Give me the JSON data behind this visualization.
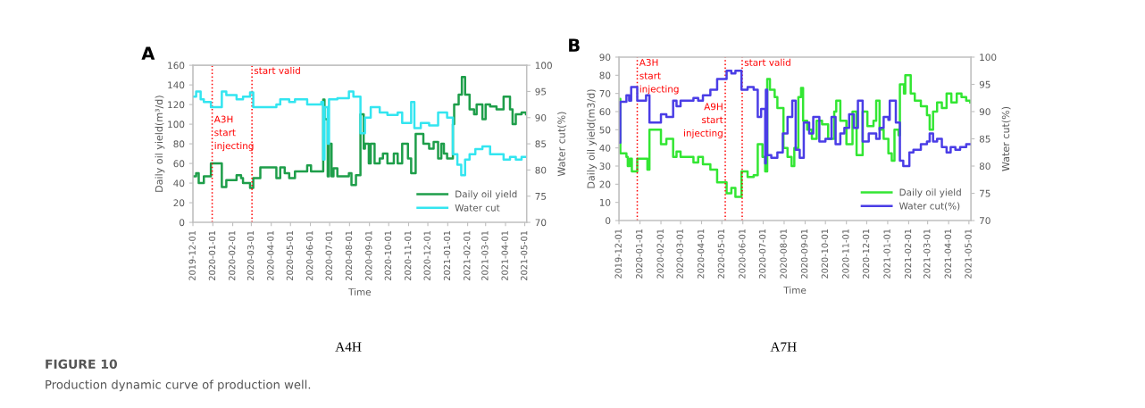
{
  "chart_data": [
    {
      "type": "step",
      "title": "A",
      "subtitle": "A4H",
      "xlabel": "Time",
      "ylabel": "Daily oil yield(m³/d)",
      "y2label": "Water cut(%)",
      "xlim": [
        "2019-12-01",
        "2021-05-04"
      ],
      "xticks": [
        "2019-12-01",
        "2020-01-01",
        "2020-02-01",
        "2020-03-01",
        "2020-04-01",
        "2020-05-01",
        "2020-06-01",
        "2020-07-01",
        "2020-08-01",
        "2020-09-01",
        "2020-10-01",
        "2020-11-01",
        "2020-12-01",
        "2021-01-01",
        "2021-02-01",
        "2021-03-01",
        "2021-04-01",
        "2021-05-01"
      ],
      "ylim": [
        0,
        160
      ],
      "yticks": [
        0,
        20,
        40,
        60,
        80,
        100,
        120,
        140,
        160
      ],
      "y2lim": [
        70,
        100
      ],
      "y2ticks": [
        70,
        75,
        80,
        85,
        90,
        95,
        100
      ],
      "grid": false,
      "legend": "bottom right",
      "ref_lines": [
        {
          "axis": "x",
          "value": "2019-12-31",
          "label": "A3H\nstart\ninjecting",
          "color": "#ff0000",
          "line_style": "dotted"
        },
        {
          "axis": "x",
          "value": "2020-03-02",
          "label": "start valid",
          "color": "#ff0000",
          "line_style": "dotted"
        }
      ],
      "series": [
        {
          "name": "Daily oil yield",
          "color": "#1e9e4a",
          "x": [
            "2019-12-01",
            "2019-12-06",
            "2019-12-10",
            "2019-12-18",
            "2019-12-29",
            "2020-01-15",
            "2020-01-22",
            "2020-02-07",
            "2020-02-14",
            "2020-02-17",
            "2020-02-28",
            "2020-03-04",
            "2020-03-15",
            "2020-04-09",
            "2020-04-15",
            "2020-04-22",
            "2020-04-29",
            "2020-05-08",
            "2020-05-27",
            "2020-06-02",
            "2020-06-21",
            "2020-06-23",
            "2020-06-28",
            "2020-06-30",
            "2020-07-04",
            "2020-07-07",
            "2020-07-13",
            "2020-07-31",
            "2020-08-04",
            "2020-08-11",
            "2020-08-18",
            "2020-08-23",
            "2020-08-25",
            "2020-08-31",
            "2020-09-03",
            "2020-09-09",
            "2020-09-17",
            "2020-09-22",
            "2020-09-29",
            "2020-10-09",
            "2020-10-15",
            "2020-10-22",
            "2020-10-31",
            "2020-11-05",
            "2020-11-12",
            "2020-11-24",
            "2020-12-03",
            "2020-12-10",
            "2020-12-17",
            "2020-12-22",
            "2020-12-26",
            "2020-12-31",
            "2021-01-09",
            "2021-01-11",
            "2021-01-18",
            "2021-01-23",
            "2021-01-28",
            "2021-02-04",
            "2021-02-11",
            "2021-02-15",
            "2021-02-24",
            "2021-03-01",
            "2021-03-08",
            "2021-03-18",
            "2021-03-29",
            "2021-04-08",
            "2021-04-12",
            "2021-04-17",
            "2021-04-26",
            "2021-05-03"
          ],
          "values": [
            47,
            50,
            40,
            47,
            60,
            36,
            43,
            48,
            45,
            40,
            35,
            45,
            56,
            45,
            56,
            50,
            45,
            52,
            58,
            52,
            125,
            105,
            47,
            80,
            47,
            55,
            47,
            50,
            38,
            48,
            110,
            75,
            80,
            60,
            80,
            60,
            65,
            70,
            60,
            70,
            60,
            80,
            65,
            50,
            90,
            80,
            75,
            82,
            65,
            80,
            70,
            65,
            100,
            120,
            130,
            148,
            130,
            115,
            110,
            120,
            105,
            120,
            118,
            115,
            128,
            115,
            100,
            110,
            112,
            110
          ]
        },
        {
          "name": "Water cut",
          "color": "#33e5f0",
          "axis": "y2",
          "x": [
            "2019-12-01",
            "2019-12-06",
            "2019-12-13",
            "2019-12-18",
            "2019-12-29",
            "2020-01-15",
            "2020-01-22",
            "2020-02-07",
            "2020-02-17",
            "2020-02-28",
            "2020-03-04",
            "2020-04-09",
            "2020-04-15",
            "2020-04-29",
            "2020-05-08",
            "2020-05-27",
            "2020-06-18",
            "2020-06-21",
            "2020-06-23",
            "2020-06-28",
            "2020-06-30",
            "2020-07-13",
            "2020-07-31",
            "2020-08-07",
            "2020-08-18",
            "2020-08-25",
            "2020-09-03",
            "2020-09-17",
            "2020-09-29",
            "2020-10-15",
            "2020-10-22",
            "2020-11-05",
            "2020-11-10",
            "2020-11-20",
            "2020-12-03",
            "2020-12-17",
            "2020-12-31",
            "2021-01-09",
            "2021-01-16",
            "2021-01-22",
            "2021-01-28",
            "2021-02-04",
            "2021-02-13",
            "2021-02-24",
            "2021-03-08",
            "2021-03-18",
            "2021-03-29",
            "2021-04-08",
            "2021-04-17",
            "2021-04-26",
            "2021-05-03"
          ],
          "values": [
            94,
            95,
            93.5,
            93,
            92,
            95,
            94.3,
            93.5,
            94,
            94.8,
            92,
            92.5,
            93.5,
            93,
            93.5,
            92.5,
            93,
            82,
            92,
            85,
            93.5,
            93.7,
            95,
            94,
            87,
            90,
            92,
            91,
            90.5,
            91,
            89,
            93,
            88,
            89,
            88.5,
            91,
            90,
            83,
            81,
            79,
            82,
            83,
            84,
            84.5,
            83,
            83,
            82,
            82.5,
            82,
            82.5,
            82.5
          ]
        }
      ],
      "annotations": [
        "FIGURE 10",
        "Production dynamic curve of production well."
      ]
    },
    {
      "type": "step",
      "title": "B",
      "subtitle": "A7H",
      "xlabel": "Time",
      "ylabel": "Daily oil yield(m3/d)",
      "y2label": "Water cut(%)",
      "xlim": [
        "2019-12-01",
        "2021-05-04"
      ],
      "xticks": [
        "2019-12-01",
        "2020-01-01",
        "2020-02-01",
        "2020-03-01",
        "2020-04-01",
        "2020-05-01",
        "2020-06-01",
        "2020-07-01",
        "2020-08-01",
        "2020-09-01",
        "2020-10-01",
        "2020-11-01",
        "2020-12-01",
        "2021-01-01",
        "2021-02-01",
        "2021-03-01",
        "2021-04-01",
        "2021-05-01"
      ],
      "ylim": [
        0,
        90
      ],
      "yticks": [
        0,
        10,
        20,
        30,
        40,
        50,
        60,
        70,
        80,
        90
      ],
      "y2lim": [
        70,
        100
      ],
      "y2ticks": [
        70,
        75,
        80,
        85,
        90,
        95,
        100
      ],
      "grid": false,
      "legend": "bottom right",
      "ref_lines": [
        {
          "axis": "x",
          "value": "2019-12-28",
          "label": "A3H\nstart\ninjecting",
          "color": "#ff0000",
          "line_style": "dotted"
        },
        {
          "axis": "x",
          "value": "2020-05-06",
          "label": "A9H\nstart\ninjecting",
          "color": "#ff0000",
          "line_style": "dotted"
        },
        {
          "axis": "x",
          "value": "2020-05-31",
          "label": "start valid",
          "color": "#ff0000",
          "line_style": "dotted"
        }
      ],
      "series": [
        {
          "name": "Daily oil yield",
          "color": "#33e633",
          "x": [
            "2019-12-01",
            "2019-12-03",
            "2019-12-12",
            "2019-12-14",
            "2019-12-17",
            "2019-12-20",
            "2019-12-28",
            "2020-01-12",
            "2020-01-15",
            "2020-02-01",
            "2020-02-09",
            "2020-02-19",
            "2020-02-24",
            "2020-03-01",
            "2020-03-20",
            "2020-03-27",
            "2020-04-03",
            "2020-04-14",
            "2020-04-24",
            "2020-05-08",
            "2020-05-15",
            "2020-05-21",
            "2020-05-30",
            "2020-06-08",
            "2020-06-17",
            "2020-06-23",
            "2020-06-30",
            "2020-07-04",
            "2020-07-07",
            "2020-07-11",
            "2020-07-18",
            "2020-07-22",
            "2020-07-31",
            "2020-08-06",
            "2020-08-12",
            "2020-08-16",
            "2020-08-22",
            "2020-08-26",
            "2020-08-29",
            "2020-09-04",
            "2020-09-11",
            "2020-09-18",
            "2020-09-26",
            "2020-10-05",
            "2020-10-14",
            "2020-10-17",
            "2020-10-23",
            "2020-11-01",
            "2020-11-10",
            "2020-11-16",
            "2020-11-25",
            "2020-12-02",
            "2020-12-11",
            "2020-12-15",
            "2020-12-20",
            "2020-12-26",
            "2021-01-02",
            "2021-01-07",
            "2021-01-11",
            "2021-01-17",
            "2021-01-19",
            "2021-01-25",
            "2021-01-27",
            "2021-02-04",
            "2021-02-10",
            "2021-02-19",
            "2021-02-28",
            "2021-03-04",
            "2021-03-09",
            "2021-03-15",
            "2021-03-22",
            "2021-03-29",
            "2021-04-05",
            "2021-04-13",
            "2021-04-20",
            "2021-04-27",
            "2021-05-03"
          ],
          "values": [
            67,
            37,
            35,
            30,
            34,
            27,
            34,
            28,
            50,
            42,
            45,
            35,
            38,
            35,
            32,
            35,
            31,
            28,
            21,
            15,
            18,
            13,
            27,
            24,
            25,
            42,
            35,
            27,
            78,
            72,
            68,
            62,
            40,
            35,
            30,
            40,
            68,
            73,
            55,
            50,
            45,
            55,
            53,
            45,
            60,
            66,
            55,
            42,
            60,
            36,
            60,
            52,
            55,
            66,
            50,
            45,
            37,
            33,
            50,
            47,
            75,
            70,
            80,
            70,
            66,
            63,
            58,
            50,
            60,
            65,
            62,
            70,
            65,
            70,
            68,
            66,
            65
          ]
        },
        {
          "name": "Water cut(%)",
          "color": "#4a3de6",
          "axis": "y2",
          "x": [
            "2019-12-01",
            "2019-12-03",
            "2019-12-12",
            "2019-12-16",
            "2019-12-19",
            "2019-12-28",
            "2020-01-10",
            "2020-01-15",
            "2020-02-01",
            "2020-02-09",
            "2020-02-19",
            "2020-02-24",
            "2020-03-01",
            "2020-03-20",
            "2020-03-27",
            "2020-04-03",
            "2020-04-14",
            "2020-04-24",
            "2020-05-08",
            "2020-05-15",
            "2020-05-21",
            "2020-05-30",
            "2020-06-08",
            "2020-06-17",
            "2020-06-23",
            "2020-06-28",
            "2020-07-04",
            "2020-07-05",
            "2020-07-07",
            "2020-07-13",
            "2020-07-22",
            "2020-07-30",
            "2020-08-06",
            "2020-08-13",
            "2020-08-18",
            "2020-08-24",
            "2020-08-30",
            "2020-09-07",
            "2020-09-13",
            "2020-09-22",
            "2020-10-01",
            "2020-10-10",
            "2020-10-16",
            "2020-10-23",
            "2020-10-29",
            "2020-11-05",
            "2020-11-12",
            "2020-11-18",
            "2020-11-25",
            "2020-12-04",
            "2020-12-15",
            "2020-12-20",
            "2020-12-26",
            "2021-01-02",
            "2021-01-04",
            "2021-01-13",
            "2021-01-19",
            "2021-01-24",
            "2021-02-02",
            "2021-02-08",
            "2021-02-19",
            "2021-02-28",
            "2021-03-04",
            "2021-03-09",
            "2021-03-15",
            "2021-03-22",
            "2021-03-29",
            "2021-04-04",
            "2021-04-11",
            "2021-04-18",
            "2021-04-27",
            "2021-05-03"
          ],
          "values": [
            84.3,
            91.8,
            93,
            92,
            94.5,
            92,
            93,
            88,
            89.5,
            89,
            92,
            91,
            92,
            92.5,
            92,
            93,
            94,
            96,
            97.5,
            97,
            97.5,
            94,
            94.5,
            94,
            89,
            90.5,
            80.5,
            94,
            82,
            81.5,
            82.5,
            86,
            89,
            92,
            83,
            81.5,
            88,
            86,
            89,
            84.5,
            85,
            89,
            84,
            86,
            87,
            89.5,
            87,
            92,
            84.5,
            86,
            85,
            87,
            89,
            88.5,
            92,
            88,
            81,
            80,
            82.5,
            83,
            84,
            84.5,
            86,
            84.5,
            85,
            83.5,
            82.5,
            83.5,
            83,
            83.5,
            84,
            84
          ]
        }
      ]
    }
  ]
}
